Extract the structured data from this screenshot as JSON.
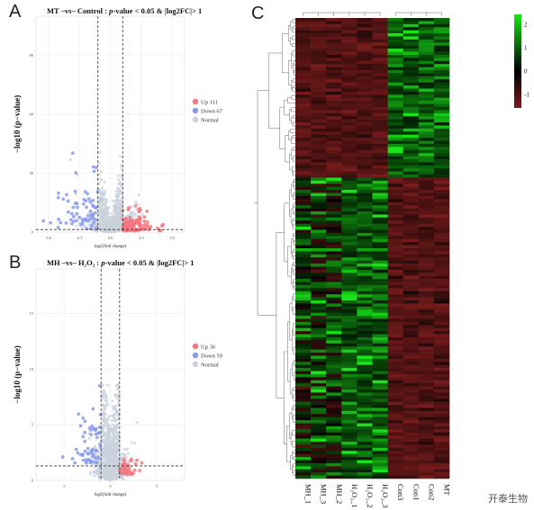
{
  "panels": {
    "a": {
      "letter": "A",
      "title_pre": "MT –vs– Control : ",
      "title_p": "p",
      "title_post": "-value < 0.05 & |log2FC|> 1"
    },
    "b": {
      "letter": "B",
      "title_pre": "MH –vs– H₂O₂ : ",
      "title_p": "p",
      "title_post": "-value < 0.05 & |log2FC|> 1"
    },
    "c": {
      "letter": "C"
    }
  },
  "watermark": "开泰生物",
  "colors": {
    "up": "#f4767f",
    "down": "#8a9bea",
    "normal": "#c9d1dc",
    "heat_low": "#7a1c1c",
    "heat_mid": "#000000",
    "heat_high": "#19e619"
  },
  "chart_data": [
    {
      "type": "scatter",
      "name": "volcano-a",
      "title": "MT –vs– Control : p-value < 0.05 & |log2FC|> 1",
      "xlabel": "log2(fold change)",
      "ylabel": "−log10 (p−value)",
      "xlim": [
        -6,
        6
      ],
      "ylim": [
        0,
        110
      ],
      "xticks": [
        "-5.0",
        "-2.5",
        "0.0",
        "2.5",
        "5.0"
      ],
      "yticks": [
        "0",
        "30",
        "60",
        "90"
      ],
      "thresholds": {
        "x": [
          -1,
          1
        ],
        "y": 1.3
      },
      "legend": [
        {
          "label": "Up",
          "count": "111"
        },
        {
          "label": "Down",
          "count": "67"
        },
        {
          "label": "Normal",
          "count": ""
        }
      ],
      "legend_position": "right",
      "grid": true
    },
    {
      "type": "scatter",
      "name": "volcano-b",
      "title": "MH –vs– H₂O₂ : p-value < 0.05 & |log2FC|> 1",
      "xlabel": "log2(fold change)",
      "ylabel": "−log10 (p−value)",
      "xlim": [
        -8,
        8
      ],
      "ylim": [
        0,
        19
      ],
      "xticks": [
        "-5",
        "0",
        "5"
      ],
      "yticks": [
        "0",
        "5",
        "10",
        "15"
      ],
      "thresholds": {
        "x": [
          -1,
          1
        ],
        "y": 1.3
      },
      "legend": [
        {
          "label": "Up",
          "count": "36"
        },
        {
          "label": "Down",
          "count": "59"
        },
        {
          "label": "Normal",
          "count": ""
        }
      ],
      "legend_position": "right",
      "grid": true
    },
    {
      "type": "heatmap",
      "name": "heatmap-c",
      "columns": [
        "MH_1",
        "MH_3",
        "MH_2",
        "H₂O₂_1",
        "H₂O₂_2",
        "H₂O₂_3",
        "Con3",
        "Con1",
        "Con2",
        "MT"
      ],
      "colorbar_ticks": [
        "2",
        "1",
        "0",
        "-1"
      ],
      "colorbar_range": [
        -1.6,
        2.4
      ],
      "row_dendrogram": true,
      "col_dendrogram": true
    }
  ]
}
